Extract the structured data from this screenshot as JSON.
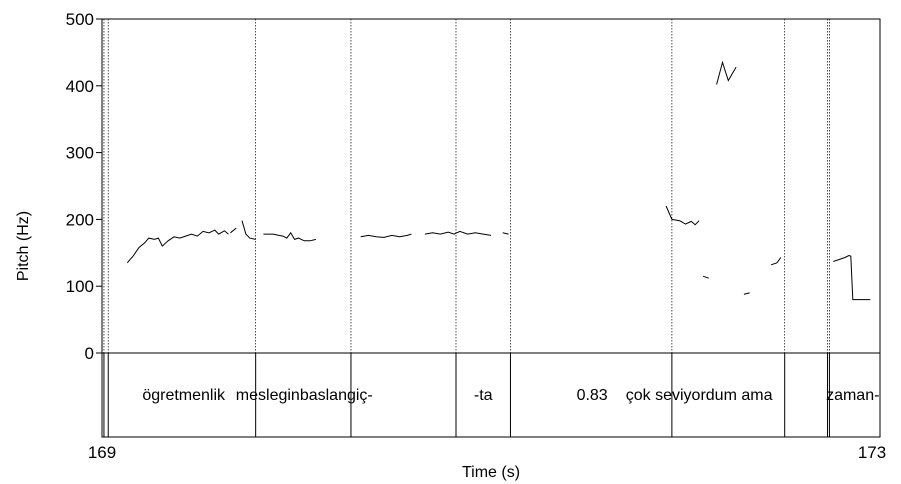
{
  "chart_data": {
    "type": "line",
    "xlabel": "Time (s)",
    "ylabel": "Pitch (Hz)",
    "xlim": [
      169,
      173
    ],
    "ylim": [
      0,
      500
    ],
    "x_tick_labels": [
      "169",
      "173"
    ],
    "y_tick_labels": [
      "0",
      "100",
      "200",
      "300",
      "400",
      "500"
    ],
    "boundaries": [
      {
        "t": 169.01,
        "style": "solid"
      },
      {
        "t": 169.032,
        "style": "solid"
      },
      {
        "t": 169.79,
        "style": "solid"
      },
      {
        "t": 170.28,
        "style": "solid"
      },
      {
        "t": 170.82,
        "style": "solid"
      },
      {
        "t": 171.1,
        "style": "solid"
      },
      {
        "t": 171.93,
        "style": "solid"
      },
      {
        "t": 172.51,
        "style": "solid"
      },
      {
        "t": 172.73,
        "style": "solid"
      },
      {
        "t": 172.74,
        "style": "solid"
      }
    ],
    "tier_labels": [
      {
        "t": 169.42,
        "text": "ögretmenlik"
      },
      {
        "t": 170.04,
        "text": "mesleginbaslangiç-"
      },
      {
        "t": 170.96,
        "text": "-ta"
      },
      {
        "t": 171.52,
        "text": "0.83"
      },
      {
        "t": 172.07,
        "text": "çok seviyordum ama"
      },
      {
        "t": 172.86,
        "text": "zaman-"
      }
    ],
    "series": [
      {
        "points": [
          [
            169.13,
            135
          ],
          [
            169.16,
            145
          ],
          [
            169.19,
            158
          ],
          [
            169.22,
            165
          ],
          [
            169.24,
            172
          ],
          [
            169.27,
            170
          ],
          [
            169.29,
            172
          ],
          [
            169.31,
            160
          ],
          [
            169.34,
            168
          ],
          [
            169.37,
            174
          ],
          [
            169.4,
            172
          ],
          [
            169.43,
            175
          ],
          [
            169.46,
            178
          ],
          [
            169.49,
            175
          ],
          [
            169.52,
            182
          ],
          [
            169.55,
            180
          ],
          [
            169.58,
            184
          ],
          [
            169.6,
            178
          ],
          [
            169.63,
            183
          ],
          [
            169.65,
            178
          ]
        ]
      },
      {
        "points": [
          [
            169.66,
            180
          ],
          [
            169.69,
            187
          ]
        ]
      },
      {
        "points": [
          [
            169.72,
            198
          ],
          [
            169.74,
            178
          ],
          [
            169.76,
            172
          ],
          [
            169.79,
            170
          ]
        ]
      },
      {
        "points": [
          [
            169.83,
            178
          ],
          [
            169.88,
            178
          ],
          [
            169.91,
            176
          ],
          [
            169.93,
            175
          ],
          [
            169.95,
            172
          ],
          [
            169.97,
            180
          ],
          [
            169.99,
            170
          ],
          [
            170.01,
            172
          ],
          [
            170.04,
            168
          ],
          [
            170.07,
            168
          ],
          [
            170.1,
            170
          ]
        ]
      },
      {
        "points": [
          [
            170.33,
            174
          ],
          [
            170.37,
            176
          ],
          [
            170.41,
            174
          ],
          [
            170.45,
            173
          ],
          [
            170.49,
            176
          ],
          [
            170.53,
            174
          ],
          [
            170.57,
            176
          ],
          [
            170.59,
            178
          ]
        ]
      },
      {
        "points": [
          [
            170.66,
            178
          ],
          [
            170.7,
            180
          ],
          [
            170.74,
            178
          ],
          [
            170.78,
            181
          ],
          [
            170.81,
            178
          ],
          [
            170.84,
            182
          ],
          [
            170.88,
            178
          ],
          [
            170.92,
            180
          ],
          [
            170.96,
            178
          ],
          [
            171.0,
            176
          ]
        ]
      },
      {
        "points": [
          [
            171.06,
            180
          ],
          [
            171.09,
            178
          ]
        ]
      },
      {
        "points": [
          [
            171.9,
            220
          ],
          [
            171.93,
            200
          ],
          [
            171.97,
            198
          ],
          [
            172.0,
            193
          ],
          [
            172.03,
            197
          ],
          [
            172.05,
            192
          ],
          [
            172.07,
            198
          ]
        ]
      },
      {
        "points": [
          [
            172.09,
            115
          ],
          [
            172.12,
            112
          ]
        ]
      },
      {
        "points": [
          [
            172.16,
            402
          ],
          [
            172.19,
            435
          ],
          [
            172.22,
            408
          ],
          [
            172.26,
            428
          ]
        ]
      },
      {
        "points": [
          [
            172.3,
            88
          ],
          [
            172.33,
            90
          ]
        ]
      },
      {
        "points": [
          [
            172.44,
            132
          ],
          [
            172.47,
            135
          ],
          [
            172.49,
            143
          ]
        ]
      },
      {
        "points": [
          [
            172.76,
            137
          ],
          [
            172.79,
            140
          ],
          [
            172.82,
            143
          ],
          [
            172.84,
            146
          ],
          [
            172.85,
            145
          ],
          [
            172.86,
            80
          ],
          [
            172.9,
            80
          ],
          [
            172.95,
            80
          ]
        ]
      }
    ]
  }
}
